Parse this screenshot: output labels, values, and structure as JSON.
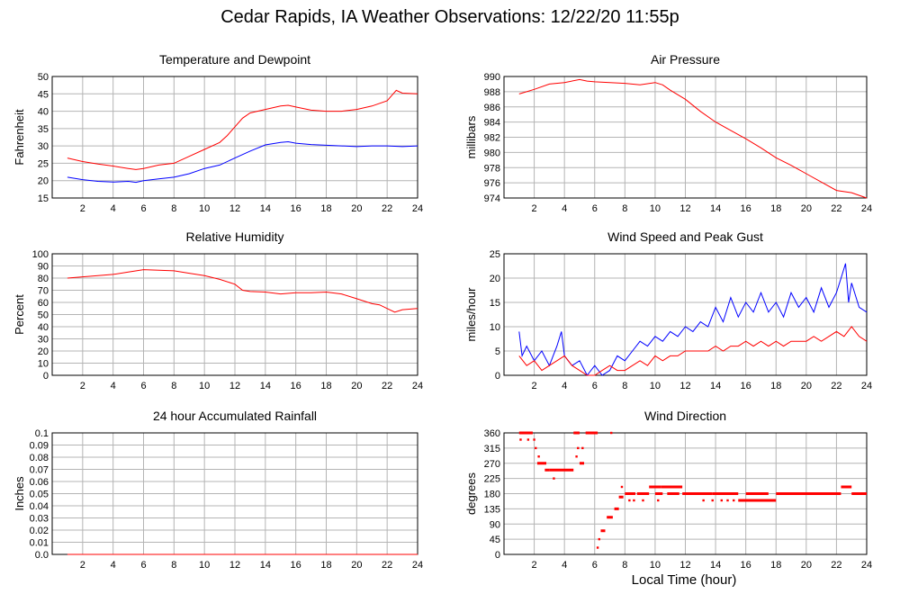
{
  "title": "Cedar Rapids, IA Weather Observations: 12/22/20 11:55p",
  "xlabel": "Local Time (hour)",
  "chart_data": [
    {
      "id": "temp",
      "type": "line",
      "title": "Temperature and Dewpoint",
      "ylabel": "Fahrenheit",
      "xlim": [
        0,
        24
      ],
      "xticks": [
        2,
        4,
        6,
        8,
        10,
        12,
        14,
        16,
        18,
        20,
        22,
        24
      ],
      "ylim": [
        15,
        50
      ],
      "yticks": [
        15,
        20,
        25,
        30,
        35,
        40,
        45,
        50
      ],
      "series": [
        {
          "color": "#ff0000",
          "x": [
            1,
            2,
            3,
            4,
            5,
            5.5,
            6,
            7,
            8,
            9,
            10,
            11,
            11.5,
            12,
            12.5,
            13,
            14,
            15,
            15.5,
            16,
            17,
            18,
            19,
            20,
            21,
            22,
            22.3,
            22.6,
            23,
            24
          ],
          "y": [
            26.5,
            25.5,
            24.8,
            24.2,
            23.5,
            23.2,
            23.5,
            24.5,
            25,
            27,
            29,
            31,
            33,
            35.5,
            38,
            39.5,
            40.5,
            41.5,
            41.7,
            41.2,
            40.3,
            40,
            40,
            40.5,
            41.5,
            43,
            44.5,
            46,
            45.2,
            45
          ]
        },
        {
          "color": "#0000ff",
          "x": [
            1,
            2,
            3,
            4,
            5,
            5.5,
            6,
            7,
            8,
            9,
            10,
            11,
            12,
            13,
            14,
            15,
            15.5,
            16,
            17,
            18,
            19,
            20,
            21,
            22,
            23,
            24
          ],
          "y": [
            21,
            20.3,
            19.8,
            19.6,
            19.8,
            19.5,
            20,
            20.5,
            21,
            22,
            23.5,
            24.5,
            26.5,
            28.5,
            30.3,
            31,
            31.2,
            30.8,
            30.4,
            30.2,
            30,
            29.8,
            30,
            30,
            29.8,
            30
          ]
        }
      ]
    },
    {
      "id": "pressure",
      "type": "line",
      "title": "Air Pressure",
      "ylabel": "millibars",
      "xlim": [
        0,
        24
      ],
      "xticks": [
        2,
        4,
        6,
        8,
        10,
        12,
        14,
        16,
        18,
        20,
        22,
        24
      ],
      "ylim": [
        974,
        990
      ],
      "yticks": [
        974,
        976,
        978,
        980,
        982,
        984,
        986,
        988,
        990
      ],
      "series": [
        {
          "color": "#ff0000",
          "x": [
            1,
            1.5,
            2,
            3,
            4,
            5,
            5.5,
            6,
            7,
            8,
            9,
            10,
            10.5,
            11,
            12,
            13,
            14,
            15,
            16,
            17,
            18,
            19,
            20,
            21,
            22,
            23,
            24
          ],
          "y": [
            987.7,
            988,
            988.3,
            989,
            989.2,
            989.6,
            989.4,
            989.3,
            989.2,
            989.1,
            988.9,
            989.2,
            988.9,
            988.2,
            987,
            985.4,
            984,
            982.9,
            981.8,
            980.6,
            979.3,
            978.3,
            977.2,
            976.1,
            975,
            974.7,
            974
          ]
        }
      ]
    },
    {
      "id": "rh",
      "type": "line",
      "title": "Relative Humidity",
      "ylabel": "Percent",
      "xlim": [
        0,
        24
      ],
      "xticks": [
        2,
        4,
        6,
        8,
        10,
        12,
        14,
        16,
        18,
        20,
        22,
        24
      ],
      "ylim": [
        0,
        100
      ],
      "yticks": [
        0,
        10,
        20,
        30,
        40,
        50,
        60,
        70,
        80,
        90,
        100
      ],
      "series": [
        {
          "color": "#ff0000",
          "x": [
            1,
            2,
            3,
            4,
            5,
            6,
            7,
            8,
            9,
            10,
            11,
            12,
            12.5,
            13,
            14,
            15,
            16,
            17,
            18,
            19,
            20,
            21,
            21.5,
            22,
            22.5,
            23,
            24
          ],
          "y": [
            80,
            81,
            82,
            83,
            85,
            87,
            86.5,
            86,
            84,
            82,
            79,
            75,
            70,
            69,
            68.5,
            67,
            68,
            68,
            68.5,
            67,
            63,
            59,
            58,
            55,
            52,
            54,
            55
          ]
        }
      ]
    },
    {
      "id": "wind",
      "type": "line",
      "title": "Wind Speed and Peak Gust",
      "ylabel": "miles/hour",
      "xlim": [
        0,
        24
      ],
      "xticks": [
        2,
        4,
        6,
        8,
        10,
        12,
        14,
        16,
        18,
        20,
        22,
        24
      ],
      "ylim": [
        0,
        25
      ],
      "yticks": [
        0,
        5,
        10,
        15,
        20,
        25
      ],
      "series": [
        {
          "color": "#0000ff",
          "x": [
            1,
            1.2,
            1.5,
            2,
            2.5,
            3,
            3.5,
            3.8,
            4,
            4.5,
            5,
            5.5,
            6,
            6.5,
            7,
            7.5,
            8,
            8.5,
            9,
            9.5,
            10,
            10.5,
            11,
            11.5,
            12,
            12.5,
            13,
            13.5,
            14,
            14.5,
            15,
            15.5,
            16,
            16.5,
            17,
            17.5,
            18,
            18.5,
            19,
            19.5,
            20,
            20.5,
            21,
            21.5,
            22,
            22.3,
            22.6,
            22.8,
            23,
            23.5,
            24
          ],
          "y": [
            9,
            4,
            6,
            3,
            5,
            2,
            6,
            9,
            4,
            2,
            3,
            0,
            2,
            0,
            1,
            4,
            3,
            5,
            7,
            6,
            8,
            7,
            9,
            8,
            10,
            9,
            11,
            10,
            14,
            11,
            16,
            12,
            15,
            13,
            17,
            13,
            15,
            12,
            17,
            14,
            16,
            13,
            18,
            14,
            17,
            20,
            23,
            15,
            19,
            14,
            13
          ]
        },
        {
          "color": "#ff0000",
          "x": [
            1,
            1.5,
            2,
            2.5,
            3,
            3.5,
            4,
            4.5,
            5,
            5.5,
            6,
            6.5,
            7,
            7.5,
            8,
            8.5,
            9,
            9.5,
            10,
            10.5,
            11,
            11.5,
            12,
            12.5,
            13,
            13.5,
            14,
            14.5,
            15,
            15.5,
            16,
            16.5,
            17,
            17.5,
            18,
            18.5,
            19,
            19.5,
            20,
            20.5,
            21,
            21.5,
            22,
            22.5,
            23,
            23.5,
            24
          ],
          "y": [
            4,
            2,
            3,
            1,
            2,
            3,
            4,
            2,
            1,
            0,
            0,
            1,
            2,
            1,
            1,
            2,
            3,
            2,
            4,
            3,
            4,
            4,
            5,
            5,
            5,
            5,
            6,
            5,
            6,
            6,
            7,
            6,
            7,
            6,
            7,
            6,
            7,
            7,
            7,
            8,
            7,
            8,
            9,
            8,
            10,
            8,
            7
          ]
        }
      ]
    },
    {
      "id": "rain",
      "type": "line",
      "title": "24 hour Accumulated Rainfall",
      "ylabel": "Inches",
      "xlim": [
        0,
        24
      ],
      "xticks": [
        2,
        4,
        6,
        8,
        10,
        12,
        14,
        16,
        18,
        20,
        22,
        24
      ],
      "ylim": [
        0,
        0.1
      ],
      "yticks": [
        0.0,
        0.01,
        0.02,
        0.03,
        0.04,
        0.05,
        0.06,
        0.07,
        0.08,
        0.09,
        0.1
      ],
      "yticklabels": [
        "0.0",
        "0.01",
        "0.02",
        "0.03",
        "0.04",
        "0.05",
        "0.06",
        "0.07",
        "0.08",
        "0.09",
        "0.1"
      ],
      "series": [
        {
          "color": "#ff0000",
          "x": [
            1,
            24
          ],
          "y": [
            0,
            0
          ]
        }
      ]
    },
    {
      "id": "dir",
      "type": "scatter",
      "title": "Wind Direction",
      "ylabel": "degrees",
      "xlim": [
        0,
        24
      ],
      "xticks": [
        2,
        4,
        6,
        8,
        10,
        12,
        14,
        16,
        18,
        20,
        22,
        24
      ],
      "ylim": [
        0,
        360
      ],
      "yticks": [
        0,
        45,
        90,
        135,
        180,
        225,
        270,
        315,
        360
      ],
      "series": [
        {
          "color": "#ff0000",
          "segments": [
            [
              1.0,
              1.9,
              360
            ],
            [
              2.2,
              2.8,
              270
            ],
            [
              2.7,
              3.0,
              250
            ],
            [
              3.0,
              4.6,
              250
            ],
            [
              4.6,
              5.0,
              360
            ],
            [
              5.0,
              5.3,
              270
            ],
            [
              5.4,
              6.2,
              360
            ],
            [
              6.4,
              6.7,
              70
            ],
            [
              6.8,
              7.2,
              110
            ],
            [
              7.3,
              7.6,
              135
            ],
            [
              7.6,
              7.9,
              170
            ],
            [
              8.0,
              8.7,
              180
            ],
            [
              8.8,
              9.6,
              180
            ],
            [
              9.6,
              10.4,
              200
            ],
            [
              10.0,
              10.5,
              180
            ],
            [
              10.4,
              11.8,
              200
            ],
            [
              10.8,
              11.6,
              180
            ],
            [
              11.8,
              13.8,
              180
            ],
            [
              13.8,
              15.5,
              180
            ],
            [
              15.5,
              18.0,
              160
            ],
            [
              16.0,
              17.5,
              180
            ],
            [
              18.0,
              22.3,
              180
            ],
            [
              22.3,
              23.0,
              200
            ],
            [
              23.0,
              24.0,
              180
            ]
          ],
          "points": [
            [
              1.1,
              340
            ],
            [
              1.6,
              340
            ],
            [
              2.0,
              340
            ],
            [
              2.1,
              315
            ],
            [
              2.3,
              290
            ],
            [
              3.3,
              225
            ],
            [
              4.8,
              290
            ],
            [
              4.9,
              315
            ],
            [
              5.2,
              315
            ],
            [
              6.2,
              20
            ],
            [
              6.3,
              45
            ],
            [
              6.6,
              70
            ],
            [
              7.1,
              360
            ],
            [
              7.8,
              200
            ],
            [
              8.3,
              160
            ],
            [
              8.6,
              160
            ],
            [
              9.2,
              160
            ],
            [
              10.2,
              160
            ],
            [
              13.2,
              160
            ],
            [
              13.8,
              160
            ],
            [
              14.4,
              160
            ],
            [
              14.8,
              160
            ],
            [
              15.2,
              160
            ],
            [
              19.5,
              180
            ],
            [
              21.0,
              180
            ],
            [
              22.5,
              200
            ]
          ]
        }
      ]
    }
  ]
}
